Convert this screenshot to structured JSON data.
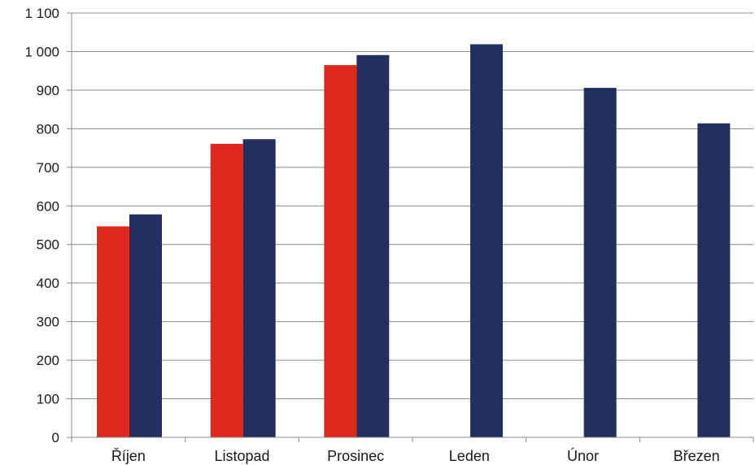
{
  "chart_data": {
    "type": "bar",
    "categories": [
      "Říjen",
      "Listopad",
      "Prosinec",
      "Leden",
      "Únor",
      "Březen"
    ],
    "series": [
      {
        "color": "#e0291e",
        "values": [
          547,
          761,
          965,
          null,
          null,
          null
        ]
      },
      {
        "color": "#232f5e",
        "values": [
          578,
          773,
          991,
          1019,
          906,
          814
        ]
      }
    ],
    "y_ticks": [
      "0",
      "100",
      "200",
      "300",
      "400",
      "500",
      "600",
      "700",
      "800",
      "900",
      "1 000",
      "1 100"
    ],
    "ylim": [
      0,
      1100
    ],
    "grid": true,
    "legend": "none"
  }
}
